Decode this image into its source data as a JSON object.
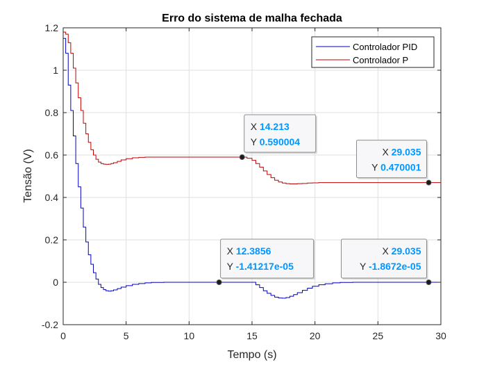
{
  "chart_data": {
    "type": "line",
    "title": "Erro do sistema de malha fechada",
    "xlabel": "Tempo (s)",
    "ylabel": "Tensão (V)",
    "xlim": [
      0,
      30
    ],
    "ylim": [
      -0.2,
      1.2
    ],
    "xticks": [
      0,
      5,
      10,
      15,
      20,
      25,
      30
    ],
    "yticks": [
      -0.2,
      0,
      0.2,
      0.4,
      0.6,
      0.8,
      1,
      1.2
    ],
    "xtick_labels": [
      "0",
      "5",
      "10",
      "15",
      "20",
      "25",
      "30"
    ],
    "ytick_labels": [
      "-0.2",
      "0",
      "0.2",
      "0.4",
      "0.6",
      "0.8",
      "1",
      "1.2"
    ],
    "grid": true,
    "legend_position": "top-right",
    "plot_style": "stairs",
    "series": [
      {
        "name": "Controlador PID",
        "color": "#0000bf",
        "x": [
          0,
          0.2,
          0.4,
          0.6,
          0.8,
          1.0,
          1.2,
          1.4,
          1.6,
          1.8,
          2.0,
          2.2,
          2.4,
          2.6,
          2.8,
          3.0,
          3.2,
          3.4,
          3.6,
          3.8,
          4.0,
          4.3,
          4.6,
          5.0,
          5.5,
          6.0,
          6.5,
          7.0,
          8.0,
          9.0,
          10.0,
          11.0,
          12.0,
          12.3856,
          13.0,
          14.0,
          15.0,
          15.3,
          15.6,
          15.9,
          16.2,
          16.5,
          16.8,
          17.1,
          17.4,
          17.7,
          18.0,
          18.3,
          18.6,
          19.0,
          19.4,
          19.8,
          20.3,
          20.8,
          21.4,
          22.0,
          23.0,
          24.0,
          25.0,
          26.0,
          27.0,
          28.0,
          29.035,
          30.0
        ],
        "y": [
          1.15,
          1.08,
          0.93,
          0.81,
          0.69,
          0.56,
          0.45,
          0.35,
          0.26,
          0.19,
          0.13,
          0.085,
          0.045,
          0.015,
          -0.01,
          -0.025,
          -0.035,
          -0.04,
          -0.042,
          -0.04,
          -0.036,
          -0.03,
          -0.023,
          -0.016,
          -0.01,
          -0.006,
          -0.003,
          -0.001,
          0.0,
          0.0,
          0.0,
          0.0,
          0.0,
          0.0,
          0.0,
          0.0,
          0.0,
          -0.012,
          -0.025,
          -0.04,
          -0.052,
          -0.062,
          -0.07,
          -0.074,
          -0.075,
          -0.072,
          -0.066,
          -0.058,
          -0.049,
          -0.038,
          -0.028,
          -0.019,
          -0.012,
          -0.007,
          -0.003,
          -0.001,
          0.0,
          0.0,
          0.0,
          0.0,
          0.0,
          0.0,
          0.0,
          0.0
        ]
      },
      {
        "name": "Controlador P",
        "color": "#bf0000",
        "x": [
          0,
          0.2,
          0.4,
          0.6,
          0.8,
          1.0,
          1.2,
          1.4,
          1.6,
          1.8,
          2.0,
          2.2,
          2.4,
          2.6,
          2.8,
          3.0,
          3.2,
          3.4,
          3.6,
          3.8,
          4.0,
          4.3,
          4.6,
          5.0,
          5.5,
          6.0,
          6.5,
          7.0,
          8.0,
          9.0,
          10.0,
          11.0,
          12.0,
          13.0,
          14.213,
          14.6,
          15.0,
          15.3,
          15.6,
          15.9,
          16.2,
          16.5,
          16.8,
          17.1,
          17.4,
          17.7,
          18.0,
          18.3,
          18.6,
          19.0,
          19.4,
          19.8,
          20.3,
          21.0,
          22.0,
          23.0,
          24.0,
          25.0,
          26.0,
          27.0,
          28.0,
          29.035,
          30.0
        ],
        "y": [
          1.18,
          1.17,
          1.13,
          1.08,
          1.01,
          0.94,
          0.87,
          0.81,
          0.75,
          0.7,
          0.66,
          0.625,
          0.6,
          0.58,
          0.567,
          0.56,
          0.557,
          0.556,
          0.557,
          0.56,
          0.564,
          0.57,
          0.577,
          0.583,
          0.587,
          0.589,
          0.59,
          0.59,
          0.59,
          0.59,
          0.59,
          0.59,
          0.59,
          0.59,
          0.590004,
          0.585,
          0.575,
          0.56,
          0.543,
          0.525,
          0.508,
          0.493,
          0.481,
          0.473,
          0.468,
          0.465,
          0.464,
          0.464,
          0.465,
          0.466,
          0.468,
          0.469,
          0.47,
          0.47,
          0.47,
          0.47,
          0.47,
          0.47,
          0.47,
          0.47,
          0.47,
          0.470001,
          0.47
        ]
      }
    ],
    "datatips": [
      {
        "x_label": "X",
        "x_value": "14.213",
        "y_label": "Y",
        "y_value": "0.590004",
        "x": 14.213,
        "y": 0.590004
      },
      {
        "x_label": "X",
        "x_value": "29.035",
        "y_label": "Y",
        "y_value": "0.470001",
        "x": 29.035,
        "y": 0.470001
      },
      {
        "x_label": "X",
        "x_value": "12.3856",
        "y_label": "Y",
        "y_value": "-1.41217e-05",
        "x": 12.3856,
        "y": -1.41217e-05
      },
      {
        "x_label": "X",
        "x_value": "29.035",
        "y_label": "Y",
        "y_value": "-1.8672e-05",
        "x": 29.035,
        "y": -1.8672e-05
      }
    ],
    "colors": {
      "axis": "#262626",
      "grid": "#dfdfdf",
      "datatip_value": "#0096ff",
      "marker": "#1a1a1a"
    }
  }
}
